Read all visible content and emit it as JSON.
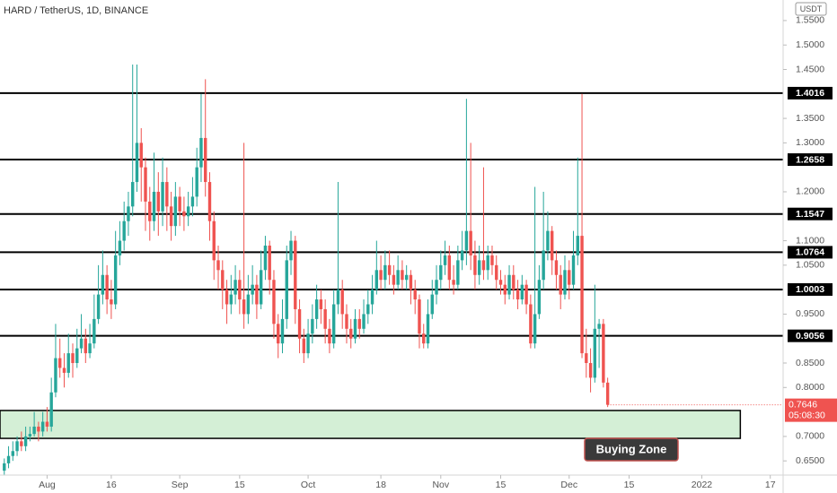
{
  "chart_data": {
    "type": "candlestick",
    "title": "HARD / TetherUS, 1D, BINANCE",
    "y_unit": "USDT",
    "up_color": "#26a69a",
    "down_color": "#ef5350",
    "x": [
      "07-22",
      "07-23",
      "07-24",
      "07-25",
      "07-26",
      "07-27",
      "07-28",
      "07-29",
      "07-30",
      "07-31",
      "08-01",
      "08-02",
      "08-03",
      "08-04",
      "08-05",
      "08-06",
      "08-07",
      "08-08",
      "08-09",
      "08-10",
      "08-11",
      "08-12",
      "08-13",
      "08-14",
      "08-15",
      "08-16",
      "08-17",
      "08-18",
      "08-19",
      "08-20",
      "08-21",
      "08-22",
      "08-23",
      "08-24",
      "08-25",
      "08-26",
      "08-27",
      "08-28",
      "08-29",
      "08-30",
      "08-31",
      "09-01",
      "09-02",
      "09-03",
      "09-04",
      "09-05",
      "09-06",
      "09-07",
      "09-08",
      "09-09",
      "09-10",
      "09-11",
      "09-12",
      "09-13",
      "09-14",
      "09-15",
      "09-16",
      "09-17",
      "09-18",
      "09-19",
      "09-20",
      "09-21",
      "09-22",
      "09-23",
      "09-24",
      "09-25",
      "09-26",
      "09-27",
      "09-28",
      "09-29",
      "09-30",
      "10-01",
      "10-02",
      "10-03",
      "10-04",
      "10-05",
      "10-06",
      "10-07",
      "10-08",
      "10-09",
      "10-10",
      "10-11",
      "10-12",
      "10-13",
      "10-14",
      "10-15",
      "10-16",
      "10-17",
      "10-18",
      "10-19",
      "10-20",
      "10-21",
      "10-22",
      "10-23",
      "10-24",
      "10-25",
      "10-26",
      "10-27",
      "10-28",
      "10-29",
      "10-30",
      "10-31",
      "11-01",
      "11-02",
      "11-03",
      "11-04",
      "11-05",
      "11-06",
      "11-07",
      "11-08",
      "11-09",
      "11-10",
      "11-11",
      "11-12",
      "11-13",
      "11-14",
      "11-15",
      "11-16",
      "11-17",
      "11-18",
      "11-19",
      "11-20",
      "11-21",
      "11-22",
      "11-23",
      "11-24",
      "11-25",
      "11-26",
      "11-27",
      "11-28",
      "11-29",
      "11-30",
      "12-01",
      "12-02",
      "12-03",
      "12-04",
      "12-05",
      "12-06",
      "12-07",
      "12-08",
      "12-09",
      "12-10"
    ],
    "open": [
      0.63,
      0.645,
      0.66,
      0.67,
      0.69,
      0.68,
      0.7,
      0.705,
      0.72,
      0.71,
      0.73,
      0.72,
      0.79,
      0.86,
      0.84,
      0.83,
      0.87,
      0.85,
      0.88,
      0.9,
      0.87,
      0.89,
      0.94,
      0.99,
      1.03,
      0.98,
      0.97,
      1.07,
      1.1,
      1.14,
      1.17,
      1.22,
      1.3,
      1.25,
      1.18,
      1.14,
      1.2,
      1.16,
      1.22,
      1.17,
      1.13,
      1.19,
      1.16,
      1.15,
      1.17,
      1.19,
      1.25,
      1.31,
      1.22,
      1.14,
      1.06,
      1.04,
      1.0,
      0.97,
      0.99,
      1.02,
      0.98,
      0.95,
      0.99,
      1.01,
      0.97,
      1.04,
      1.09,
      1.02,
      0.93,
      0.89,
      0.94,
      1.06,
      1.1,
      0.96,
      0.9,
      0.87,
      0.91,
      0.94,
      0.98,
      0.96,
      0.92,
      0.89,
      0.97,
      1.0,
      0.95,
      0.92,
      0.9,
      0.94,
      0.92,
      0.95,
      0.97,
      1.0,
      1.04,
      1.02,
      1.05,
      1.03,
      1.01,
      1.04,
      1.02,
      1.03,
      1.0,
      0.98,
      0.91,
      0.89,
      0.95,
      0.99,
      1.02,
      1.05,
      1.07,
      1.02,
      1.01,
      1.06,
      1.08,
      1.12,
      1.07,
      1.03,
      1.06,
      1.04,
      1.07,
      1.05,
      1.02,
      1.01,
      0.99,
      1.03,
      1.0,
      0.98,
      1.01,
      0.97,
      0.89,
      0.95,
      1.02,
      1.08,
      1.12,
      1.06,
      1.03,
      0.99,
      1.04,
      1.01,
      1.07,
      1.11,
      0.87,
      0.85,
      0.82,
      0.92,
      0.93,
      0.81
    ],
    "high": [
      0.655,
      0.68,
      0.69,
      0.7,
      0.71,
      0.72,
      0.72,
      0.75,
      0.73,
      0.75,
      0.76,
      0.82,
      0.93,
      0.9,
      0.87,
      0.91,
      0.89,
      0.92,
      0.95,
      0.92,
      0.93,
      0.99,
      1.05,
      1.08,
      1.05,
      1.02,
      1.12,
      1.14,
      1.18,
      1.2,
      1.46,
      1.46,
      1.33,
      1.27,
      1.21,
      1.28,
      1.24,
      1.27,
      1.25,
      1.2,
      1.22,
      1.21,
      1.19,
      1.2,
      1.23,
      1.29,
      1.4,
      1.43,
      1.24,
      1.16,
      1.09,
      1.06,
      1.02,
      1.03,
      1.05,
      1.04,
      1.3,
      1.03,
      1.05,
      1.03,
      1.08,
      1.11,
      1.1,
      1.04,
      0.95,
      0.98,
      1.09,
      1.12,
      1.11,
      0.98,
      0.92,
      0.94,
      0.97,
      1.01,
      1.0,
      0.98,
      0.94,
      1.0,
      1.22,
      1.02,
      0.97,
      0.94,
      0.96,
      0.96,
      0.98,
      1.0,
      1.03,
      1.1,
      1.07,
      1.08,
      1.08,
      1.05,
      1.07,
      1.06,
      1.05,
      1.04,
      1.02,
      0.99,
      0.93,
      0.98,
      1.02,
      1.05,
      1.08,
      1.1,
      1.09,
      1.05,
      1.09,
      1.12,
      1.39,
      1.3,
      1.1,
      1.09,
      1.25,
      1.09,
      1.09,
      1.07,
      1.04,
      1.03,
      1.05,
      1.05,
      1.02,
      1.03,
      1.02,
      0.99,
      1.21,
      1.05,
      1.2,
      1.16,
      1.13,
      1.08,
      1.05,
      1.07,
      1.06,
      1.12,
      1.27,
      1.4,
      0.92,
      0.88,
      1.01,
      0.94,
      0.94,
      0.82
    ],
    "low": [
      0.62,
      0.635,
      0.65,
      0.66,
      0.67,
      0.67,
      0.69,
      0.7,
      0.69,
      0.7,
      0.71,
      0.71,
      0.78,
      0.82,
      0.8,
      0.82,
      0.82,
      0.84,
      0.87,
      0.85,
      0.86,
      0.88,
      0.93,
      0.97,
      0.95,
      0.94,
      0.96,
      1.05,
      1.08,
      1.11,
      1.15,
      1.2,
      1.18,
      1.12,
      1.1,
      1.12,
      1.11,
      1.13,
      1.12,
      1.1,
      1.11,
      1.13,
      1.12,
      1.13,
      1.15,
      1.17,
      1.22,
      1.19,
      1.1,
      1.02,
      1.0,
      0.96,
      0.93,
      0.95,
      0.97,
      0.95,
      0.92,
      0.93,
      0.97,
      0.94,
      0.96,
      1.02,
      0.99,
      0.9,
      0.86,
      0.87,
      0.92,
      1.03,
      0.93,
      0.87,
      0.85,
      0.86,
      0.89,
      0.92,
      0.93,
      0.89,
      0.87,
      0.88,
      0.95,
      0.92,
      0.89,
      0.88,
      0.89,
      0.9,
      0.91,
      0.93,
      0.95,
      0.99,
      1.0,
      1.0,
      1.01,
      0.99,
      1.0,
      1.0,
      1.0,
      0.97,
      0.95,
      0.88,
      0.88,
      0.88,
      0.94,
      0.97,
      1.0,
      1.03,
      1.0,
      0.99,
      1.0,
      1.04,
      1.05,
      1.04,
      1.0,
      1.01,
      1.02,
      1.02,
      1.03,
      1.0,
      0.99,
      0.97,
      0.98,
      0.98,
      0.96,
      0.97,
      0.95,
      0.88,
      0.88,
      0.94,
      1.0,
      1.06,
      1.03,
      1.0,
      0.96,
      0.98,
      0.98,
      1.0,
      1.05,
      0.86,
      0.82,
      0.79,
      0.81,
      0.84,
      0.8,
      0.76
    ],
    "close": [
      0.645,
      0.66,
      0.67,
      0.69,
      0.68,
      0.7,
      0.705,
      0.72,
      0.71,
      0.73,
      0.72,
      0.79,
      0.86,
      0.84,
      0.83,
      0.87,
      0.85,
      0.88,
      0.9,
      0.87,
      0.89,
      0.94,
      0.99,
      1.03,
      0.98,
      0.97,
      1.07,
      1.1,
      1.14,
      1.17,
      1.22,
      1.3,
      1.25,
      1.18,
      1.14,
      1.2,
      1.16,
      1.22,
      1.17,
      1.13,
      1.19,
      1.16,
      1.15,
      1.17,
      1.19,
      1.25,
      1.31,
      1.22,
      1.14,
      1.06,
      1.04,
      1.0,
      0.97,
      0.99,
      1.02,
      0.98,
      0.95,
      0.99,
      1.01,
      0.97,
      1.04,
      1.09,
      1.02,
      0.93,
      0.89,
      0.94,
      1.06,
      1.1,
      0.96,
      0.9,
      0.87,
      0.91,
      0.94,
      0.98,
      0.96,
      0.92,
      0.89,
      0.97,
      1.0,
      0.95,
      0.92,
      0.9,
      0.94,
      0.92,
      0.95,
      0.97,
      1.0,
      1.04,
      1.02,
      1.05,
      1.03,
      1.01,
      1.04,
      1.02,
      1.03,
      1.0,
      0.98,
      0.91,
      0.89,
      0.95,
      0.99,
      1.02,
      1.05,
      1.07,
      1.02,
      1.01,
      1.06,
      1.08,
      1.12,
      1.07,
      1.03,
      1.06,
      1.04,
      1.07,
      1.05,
      1.02,
      1.01,
      0.99,
      1.03,
      1.0,
      0.98,
      1.01,
      0.97,
      0.89,
      0.95,
      1.02,
      1.08,
      1.12,
      1.06,
      1.03,
      0.99,
      1.04,
      1.01,
      1.07,
      1.11,
      0.87,
      0.85,
      0.82,
      0.92,
      0.93,
      0.81,
      0.7646
    ],
    "countdown": "05:08:30",
    "xlim": [
      "07-21",
      "01-20"
    ],
    "xticks": [
      {
        "value": "08-01",
        "label": "Aug"
      },
      {
        "value": "08-16",
        "label": "16"
      },
      {
        "value": "09-01",
        "label": "Sep"
      },
      {
        "value": "09-15",
        "label": "15"
      },
      {
        "value": "10-01",
        "label": "Oct"
      },
      {
        "value": "10-18",
        "label": "18"
      },
      {
        "value": "11-01",
        "label": "Nov"
      },
      {
        "value": "11-15",
        "label": "15"
      },
      {
        "value": "12-01",
        "label": "Dec"
      },
      {
        "value": "12-15",
        "label": "15"
      },
      {
        "value": "01-01",
        "label": "2022"
      },
      {
        "value": "01-17",
        "label": "17"
      }
    ],
    "ylim": [
      0.621,
      1.592
    ],
    "yticks": [
      {
        "value": 1.55,
        "label": "1.5500"
      },
      {
        "value": 1.5,
        "label": "1.5000"
      },
      {
        "value": 1.45,
        "label": "1.4500"
      },
      {
        "value": 1.35,
        "label": "1.3500"
      },
      {
        "value": 1.3,
        "label": "1.3000"
      },
      {
        "value": 1.2,
        "label": "1.2000"
      },
      {
        "value": 1.1,
        "label": "1.1000"
      },
      {
        "value": 1.05,
        "label": "1.0500"
      },
      {
        "value": 0.95,
        "label": "0.9500"
      },
      {
        "value": 0.85,
        "label": "0.8500"
      },
      {
        "value": 0.8,
        "label": "0.8000"
      },
      {
        "value": 0.7,
        "label": "0.7000"
      },
      {
        "value": 0.65,
        "label": "0.6500"
      }
    ],
    "levels": [
      1.4016,
      1.2658,
      1.1547,
      1.0764,
      1.0003,
      0.9056
    ],
    "zone": {
      "label": "Buying Zone",
      "low": 0.696,
      "high": 0.753,
      "start": "07-21",
      "end": "01-10",
      "color": "#d4efd6"
    }
  }
}
